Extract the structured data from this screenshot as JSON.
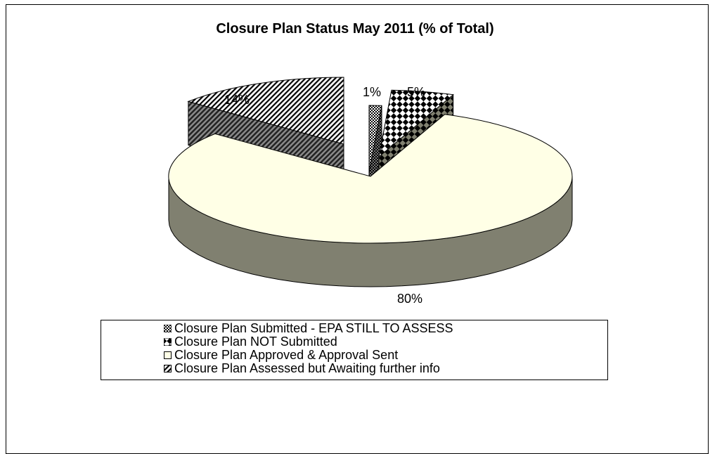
{
  "chart_data": {
    "type": "pie",
    "title": "Closure Plan Status May 2011 (% of Total)",
    "slices": [
      {
        "label": "Closure Plan Submitted - EPA STILL TO ASSESS",
        "value": 1,
        "display": "1%"
      },
      {
        "label": "Closure Plan NOT Submitted",
        "value": 5,
        "display": "5%"
      },
      {
        "label": "Closure Plan Approved & Approval Sent",
        "value": 80,
        "display": "80%"
      },
      {
        "label": "Closure Plan Assessed but Awaiting further info",
        "value": 14,
        "display": "14%"
      }
    ],
    "legend_position": "bottom",
    "colors": {
      "approved_top": "#FFFFE6",
      "approved_side": "#808070"
    }
  }
}
